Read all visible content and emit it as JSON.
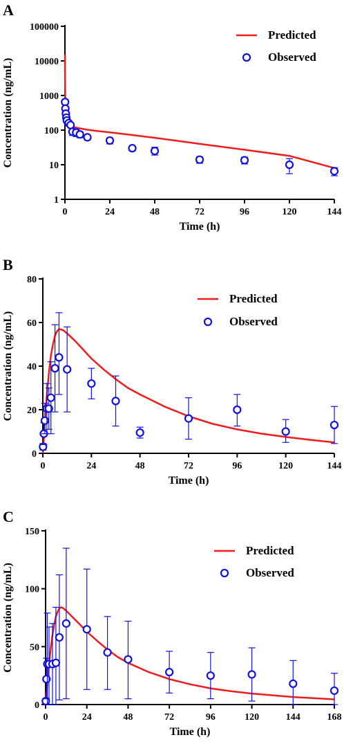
{
  "chart_data": [
    {
      "panel_label": "A",
      "type": "line",
      "ylabel": "Concentration (ng/mL)",
      "xlabel": "Time (h)",
      "y_scale": "log",
      "ylim": [
        1,
        100000
      ],
      "xlim": [
        0,
        144
      ],
      "x_ticks": [
        0,
        24,
        48,
        72,
        96,
        120,
        144
      ],
      "x_tick_labels": [
        "0",
        "24",
        "48",
        "72",
        "96",
        "120",
        "144"
      ],
      "y_ticks": [
        1,
        10,
        100,
        1000,
        10000,
        100000
      ],
      "y_tick_labels": [
        "1",
        "10",
        "100",
        "1000",
        "10000",
        "100000"
      ],
      "legend": [
        "Predicted",
        "Observed"
      ],
      "legend_position": "top-right",
      "series": [
        {
          "name": "Predicted",
          "kind": "line",
          "color": "#ee1c1c",
          "x": [
            0,
            0.05,
            0.1,
            0.2,
            0.3,
            0.5,
            0.75,
            1,
            1.5,
            2,
            3,
            4,
            6,
            8,
            10,
            12,
            16,
            24,
            36,
            48,
            72,
            96,
            120,
            144
          ],
          "y": [
            15000,
            4000,
            1800,
            700,
            450,
            280,
            200,
            170,
            150,
            140,
            130,
            125,
            118,
            112,
            107,
            103,
            96,
            86,
            72,
            60,
            40,
            27,
            18,
            8
          ]
        },
        {
          "name": "Observed",
          "kind": "points",
          "color": "#1010e0",
          "x": [
            0.08,
            0.25,
            0.5,
            0.75,
            1,
            2,
            3,
            4,
            6,
            8,
            12,
            24,
            36,
            48,
            72,
            96,
            120,
            144
          ],
          "y": [
            650,
            420,
            300,
            230,
            190,
            160,
            140,
            90,
            85,
            75,
            62,
            50,
            30,
            25,
            14,
            13.5,
            10,
            6.5
          ],
          "err_low": [
            550,
            360,
            260,
            200,
            165,
            140,
            120,
            70,
            65,
            60,
            52,
            40,
            25,
            19,
            11,
            10.5,
            5.5,
            4.8
          ],
          "err_high": [
            750,
            480,
            340,
            260,
            215,
            180,
            160,
            110,
            105,
            90,
            72,
            60,
            35,
            32,
            17,
            16.5,
            15,
            8.2
          ]
        }
      ]
    },
    {
      "panel_label": "B",
      "type": "line",
      "ylabel": "Concentration (ng/mL)",
      "xlabel": "Time (h)",
      "ylim": [
        0,
        80
      ],
      "xlim": [
        0,
        144
      ],
      "x_ticks": [
        0,
        24,
        48,
        72,
        96,
        120,
        144
      ],
      "x_tick_labels": [
        "0",
        "24",
        "48",
        "72",
        "96",
        "120",
        "144"
      ],
      "y_ticks": [
        0,
        20,
        40,
        60,
        80
      ],
      "y_tick_labels": [
        "0",
        "20",
        "40",
        "60",
        "80"
      ],
      "legend": [
        "Predicted",
        "Observed"
      ],
      "legend_position": "top-right",
      "series": [
        {
          "name": "Predicted",
          "kind": "line",
          "color": "#ee1c1c",
          "x": [
            0,
            1,
            2,
            3,
            4,
            5,
            6,
            7,
            8,
            10,
            12,
            16,
            20,
            24,
            30,
            36,
            42,
            48,
            60,
            72,
            84,
            96,
            108,
            120,
            132,
            144
          ],
          "y": [
            0,
            14,
            27,
            37,
            45,
            50,
            54,
            56,
            57,
            56.5,
            55,
            51.5,
            47.5,
            43.5,
            38.5,
            34,
            30,
            27,
            21.5,
            17,
            13.5,
            11,
            9,
            7.5,
            6.2,
            5
          ]
        },
        {
          "name": "Observed",
          "kind": "points",
          "color": "#1010e0",
          "x": [
            0.1,
            0.5,
            1,
            2,
            3,
            4,
            6,
            8,
            12,
            24,
            36,
            48,
            72,
            96,
            120,
            144
          ],
          "y": [
            3,
            9,
            15,
            20.5,
            20.5,
            25.5,
            39,
            44,
            38.5,
            32,
            24,
            9.5,
            16,
            20,
            10,
            13
          ],
          "err_low": [
            1.5,
            4,
            9,
            9,
            11,
            9,
            19,
            27,
            19,
            25,
            12.5,
            7,
            6.5,
            12.5,
            5,
            4.5
          ],
          "err_high": [
            4.5,
            14,
            23,
            32,
            30,
            42,
            59,
            64.5,
            58,
            39,
            35.5,
            12,
            25.5,
            27,
            15.5,
            21.5
          ]
        }
      ]
    },
    {
      "panel_label": "C",
      "type": "line",
      "ylabel": "Concentration (ng/mL)",
      "xlabel": "Time (h)",
      "ylim": [
        0,
        150
      ],
      "xlim": [
        0,
        168
      ],
      "x_ticks": [
        0,
        24,
        48,
        72,
        96,
        120,
        144,
        168
      ],
      "x_tick_labels": [
        "0",
        "24",
        "48",
        "72",
        "96",
        "120",
        "144",
        "168"
      ],
      "y_ticks": [
        0,
        50,
        100,
        150
      ],
      "y_tick_labels": [
        "0",
        "50",
        "100",
        "150"
      ],
      "legend": [
        "Predicted",
        "Observed"
      ],
      "legend_position": "top-right",
      "series": [
        {
          "name": "Predicted",
          "kind": "line",
          "color": "#ee1c1c",
          "x": [
            0,
            1,
            2,
            3,
            4,
            5,
            6,
            7,
            8,
            9,
            10,
            12,
            16,
            20,
            24,
            30,
            36,
            42,
            48,
            60,
            72,
            84,
            96,
            108,
            120,
            132,
            144,
            156,
            168
          ],
          "y": [
            0,
            18,
            35,
            49,
            60,
            69,
            76,
            80,
            83,
            84,
            83.5,
            81,
            75,
            69,
            63,
            55,
            47.5,
            41,
            36,
            28,
            22,
            17.5,
            14,
            11.5,
            9.5,
            8,
            6.5,
            5.5,
            4.5
          ]
        },
        {
          "name": "Observed",
          "kind": "points",
          "color": "#1010e0",
          "x": [
            0.1,
            0.5,
            1,
            2,
            4,
            6,
            8,
            12,
            24,
            36,
            48,
            72,
            96,
            120,
            144,
            168
          ],
          "y": [
            3,
            22,
            35,
            35,
            35,
            36,
            58,
            70,
            65,
            45,
            39,
            28,
            25,
            26,
            18,
            12
          ],
          "err_low": [
            1,
            5,
            0,
            0,
            0,
            0,
            4,
            5,
            13,
            13,
            5,
            10,
            5,
            3,
            0,
            0
          ],
          "err_high": [
            5,
            40,
            79,
            67,
            70,
            84,
            112,
            135,
            117,
            76,
            72,
            46,
            45,
            49,
            38,
            27
          ]
        }
      ]
    }
  ]
}
